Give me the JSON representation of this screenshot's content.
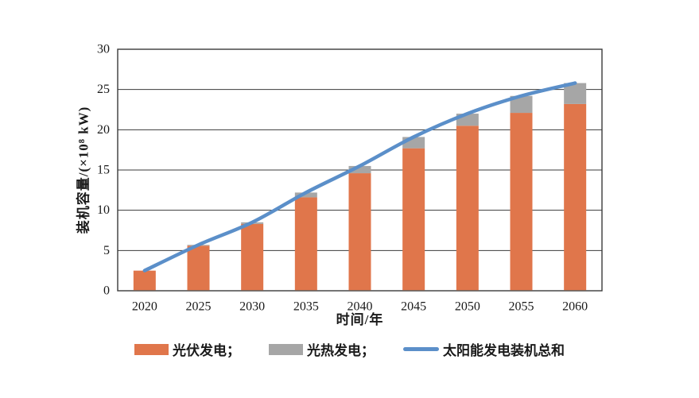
{
  "chart_data": {
    "type": "bar",
    "stacked": true,
    "title": "",
    "xlabel": "时间/年",
    "ylabel": "装机容量/(×10⁸ kW)",
    "categories": [
      "2020",
      "2025",
      "2030",
      "2035",
      "2040",
      "2045",
      "2050",
      "2055",
      "2060"
    ],
    "series": [
      {
        "key": "pv",
        "name": "光伏发电",
        "type": "bar",
        "color": "#E0764B",
        "values": [
          2.5,
          5.6,
          8.3,
          11.6,
          14.6,
          17.7,
          20.5,
          22.1,
          23.2
        ]
      },
      {
        "key": "csp",
        "name": "光热发电",
        "type": "bar",
        "color": "#A6A6A6",
        "values": [
          0.0,
          0.1,
          0.2,
          0.6,
          0.9,
          1.4,
          1.5,
          2.1,
          2.6
        ]
      },
      {
        "key": "total",
        "name": "太阳能发电装机总和",
        "type": "line",
        "color": "#5B8FC9",
        "values": [
          2.5,
          5.7,
          8.5,
          12.2,
          15.5,
          19.1,
          22.0,
          24.2,
          25.8
        ]
      }
    ],
    "ylim": [
      0,
      30
    ],
    "ytick_step": 5,
    "grid": "horizontal",
    "axis_color": "#3a3a3a",
    "text_color": "#1a1a1a",
    "background_color": "#ffffff",
    "legend_position": "bottom",
    "legend_labels": [
      "光伏发电；",
      "光热发电；",
      "太阳能发电装机总和"
    ]
  }
}
